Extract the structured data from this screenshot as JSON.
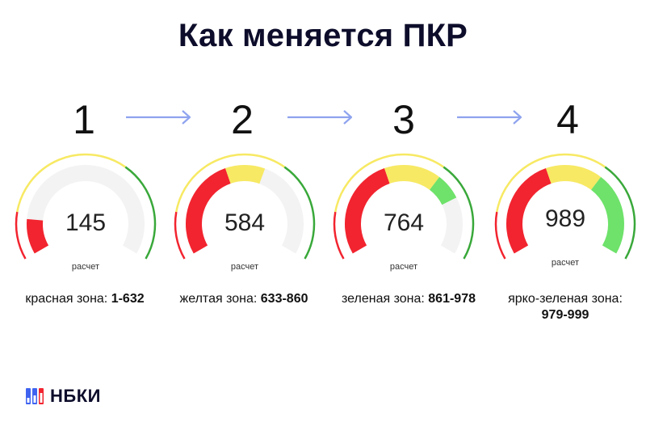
{
  "title": "Как меняется ПКР",
  "colors": {
    "red": "#f2242f",
    "yellow": "#f7e963",
    "green": "#6ee26a",
    "dark_green": "#39a83a",
    "arrow": "#8fa4ef",
    "navy": "#0d0d2b"
  },
  "icons": {
    "arrow": "arrow-right-icon",
    "logo": "nbki-logo-icon"
  },
  "steps": [
    {
      "number": "1",
      "score": "145",
      "label": "расчет",
      "zone_name": "красная зона:",
      "zone_range": "1-632",
      "fills": [
        {
          "from": 0,
          "to": 145,
          "color": "red"
        }
      ]
    },
    {
      "number": "2",
      "score": "584",
      "label": "расчет",
      "zone_name": "желтая зона:",
      "zone_range": "633-860",
      "fills": [
        {
          "from": 0,
          "to": 420,
          "color": "red"
        },
        {
          "from": 420,
          "to": 584,
          "color": "yellow"
        }
      ]
    },
    {
      "number": "3",
      "score": "764",
      "label": "расчет",
      "zone_name": "зеленая зона:",
      "zone_range": "861-978",
      "fills": [
        {
          "from": 0,
          "to": 420,
          "color": "red"
        },
        {
          "from": 420,
          "to": 655,
          "color": "yellow"
        },
        {
          "from": 655,
          "to": 764,
          "color": "green"
        }
      ]
    },
    {
      "number": "4",
      "score": "989",
      "label": "расчет",
      "zone_name": "ярко-зеленая зона:",
      "zone_range": "979-999",
      "fills": [
        {
          "from": 0,
          "to": 420,
          "color": "red"
        },
        {
          "from": 420,
          "to": 655,
          "color": "yellow"
        },
        {
          "from": 655,
          "to": 1000,
          "color": "green"
        }
      ]
    }
  ],
  "logo_text": "НБКИ"
}
